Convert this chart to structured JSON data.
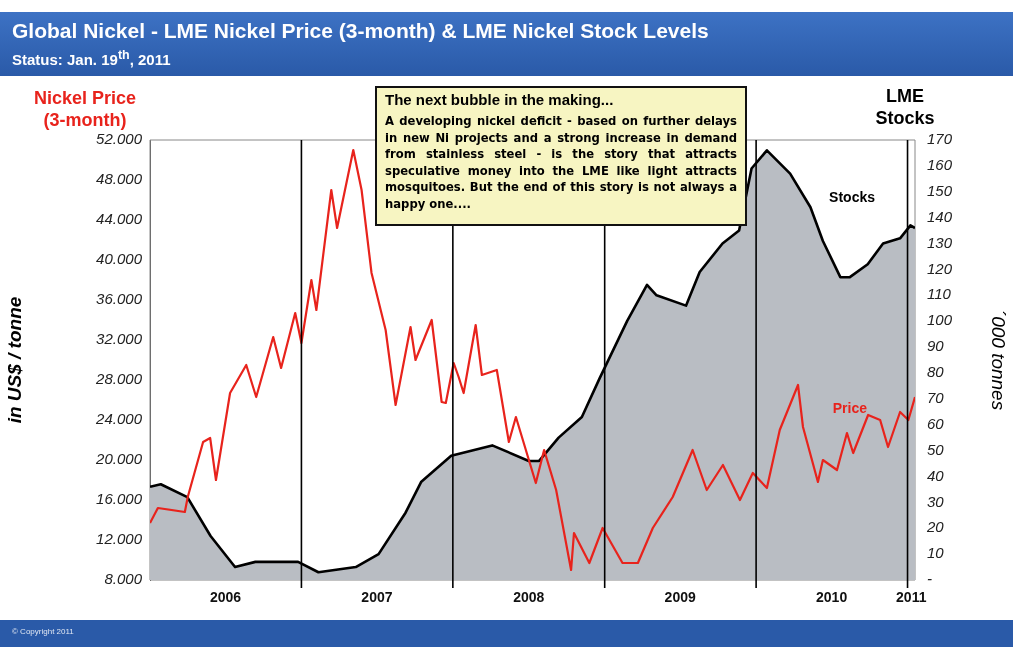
{
  "chart_data": {
    "type": "line",
    "title": "Global Nickel - LME Nickel Price (3-month) & LME Nickel Stock Levels",
    "subtitle": "Status: Jan. 19$^{th}$, 2011",
    "ylabel": "in US$ / tonne",
    "y2label": "´000 tonnes",
    "annotations": [
      "Nickel Price\n(3-month)",
      "LME\nStocks",
      "The next  bubble in the making...",
      "A developing nickel deficit - based on further delays in new Ni projects and a strong increase in demand from stainless steel -  is the story that attracts speculative money into the LME like light attracts mosquitoes. But the end of this story is not always a happy one....",
      "© Copyright 2011"
    ],
    "series": [
      {
        "name": "Price",
        "type": "line",
        "color": "#e8231c",
        "axis": "y",
        "x": [
          "2006-01-01",
          "2006-01-20",
          "2006-03-26",
          "2006-04-02",
          "2006-05-09",
          "2006-05-26",
          "2006-06-09",
          "2006-07-13",
          "2006-08-21",
          "2006-09-14",
          "2006-10-25",
          "2006-11-13",
          "2006-12-17",
          "2007-01-01",
          "2007-01-25",
          "2007-02-06",
          "2007-03-14",
          "2007-03-28",
          "2007-05-06",
          "2007-05-26",
          "2007-06-19",
          "2007-07-23",
          "2007-08-16",
          "2007-09-21",
          "2007-10-03",
          "2007-11-11",
          "2007-12-05",
          "2007-12-15",
          "2008-01-03",
          "2008-01-15",
          "2008-01-27",
          "2008-02-25",
          "2008-03-11",
          "2008-04-16",
          "2008-05-15",
          "2008-06-01",
          "2008-07-19",
          "2008-08-08",
          "2008-09-06",
          "2008-10-12",
          "2008-10-19",
          "2008-11-25",
          "2008-12-27",
          "2009-02-13",
          "2009-03-22",
          "2009-04-27",
          "2009-06-14",
          "2009-08-01",
          "2009-09-04",
          "2009-10-13",
          "2009-11-23",
          "2009-12-24",
          "2010-01-27",
          "2010-02-27",
          "2010-04-12",
          "2010-04-24",
          "2010-05-30",
          "2010-06-11",
          "2010-07-15",
          "2010-08-08",
          "2010-08-23",
          "2010-09-28",
          "2010-10-27",
          "2010-11-15",
          "2010-12-14",
          "2011-01-03",
          "2011-01-19"
        ],
        "values": [
          13700,
          15200,
          14800,
          16300,
          21800,
          22200,
          18000,
          26700,
          29500,
          26300,
          32300,
          29200,
          34700,
          31700,
          38000,
          35000,
          47000,
          43200,
          51000,
          47000,
          38700,
          33000,
          25500,
          33300,
          30000,
          34000,
          25800,
          25700,
          29700,
          28300,
          26700,
          33500,
          28500,
          29000,
          21800,
          24300,
          17700,
          21000,
          17000,
          9000,
          12700,
          9700,
          13200,
          9700,
          9700,
          13200,
          16300,
          21000,
          17000,
          19500,
          16000,
          18700,
          17200,
          23000,
          27500,
          23300,
          17800,
          20000,
          19000,
          22700,
          20700,
          24500,
          24000,
          21300,
          24800,
          24000,
          26300
        ]
      },
      {
        "name": "Stocks",
        "type": "area",
        "color": "#b9bdc3",
        "axis": "y2",
        "x": [
          "2006-01-01",
          "2006-01-27",
          "2006-04-01",
          "2006-05-27",
          "2006-07-25",
          "2006-09-12",
          "2006-11-06",
          "2006-12-24",
          "2007-02-11",
          "2007-05-12",
          "2007-07-06",
          "2007-09-09",
          "2007-10-17",
          "2007-12-28",
          "2008-04-05",
          "2008-07-02",
          "2008-07-27",
          "2008-09-12",
          "2008-11-07",
          "2008-12-20",
          "2009-02-24",
          "2009-04-13",
          "2009-05-06",
          "2009-07-16",
          "2009-08-18",
          "2009-10-12",
          "2009-11-21",
          "2009-12-21",
          "2010-01-27",
          "2010-03-24",
          "2010-05-12",
          "2010-06-11",
          "2010-07-23",
          "2010-08-15",
          "2010-09-27",
          "2010-11-03",
          "2010-12-14",
          "2011-01-08",
          "2011-01-19"
        ],
        "values": [
          36,
          37,
          32,
          17,
          5,
          7,
          7,
          7,
          3,
          5,
          10,
          26,
          38,
          48,
          52,
          46,
          46,
          55,
          63,
          78,
          100,
          114,
          110,
          106,
          119,
          130,
          135,
          159,
          166,
          157,
          144,
          131,
          117,
          117,
          122,
          130,
          132,
          137,
          136
        ]
      }
    ],
    "xlim": [
      "2006-01-01",
      "2011-01-19"
    ],
    "xticks": [
      {
        "value": "2006-07-02",
        "label": "2006"
      },
      {
        "value": "2007-07-02",
        "label": "2007"
      },
      {
        "value": "2008-07-02",
        "label": "2008"
      },
      {
        "value": "2009-07-02",
        "label": "2009"
      },
      {
        "value": "2010-07-02",
        "label": "2010"
      },
      {
        "value": "2011-01-10",
        "label": "2011"
      }
    ],
    "ylim": [
      8000,
      52000
    ],
    "yticks": [
      {
        "value": 8000,
        "label": "8.000"
      },
      {
        "value": 12000,
        "label": "12.000"
      },
      {
        "value": 16000,
        "label": "16.000"
      },
      {
        "value": 20000,
        "label": "20.000"
      },
      {
        "value": 24000,
        "label": "24.000"
      },
      {
        "value": 28000,
        "label": "28.000"
      },
      {
        "value": 32000,
        "label": "32.000"
      },
      {
        "value": 36000,
        "label": "36.000"
      },
      {
        "value": 40000,
        "label": "40.000"
      },
      {
        "value": 44000,
        "label": "44.000"
      },
      {
        "value": 48000,
        "label": "48.000"
      },
      {
        "value": 52000,
        "label": "52.000"
      }
    ],
    "y2lim": [
      0,
      170
    ],
    "y2ticks": [
      {
        "value": 0,
        "label": "-"
      },
      10,
      20,
      30,
      40,
      50,
      60,
      70,
      80,
      90,
      100,
      110,
      120,
      130,
      140,
      150,
      160,
      170
    ],
    "ref_lines": [
      {
        "axis": "x",
        "value": "2007-01-01",
        "color": "#000000"
      },
      {
        "axis": "x",
        "value": "2008-01-01",
        "color": "#000000"
      },
      {
        "axis": "x",
        "value": "2009-01-01",
        "color": "#000000"
      },
      {
        "axis": "x",
        "value": "2010-01-01",
        "color": "#000000"
      },
      {
        "axis": "x",
        "value": "2011-01-01",
        "color": "#000000"
      }
    ],
    "grid": false,
    "legend": false,
    "marker": "none"
  }
}
